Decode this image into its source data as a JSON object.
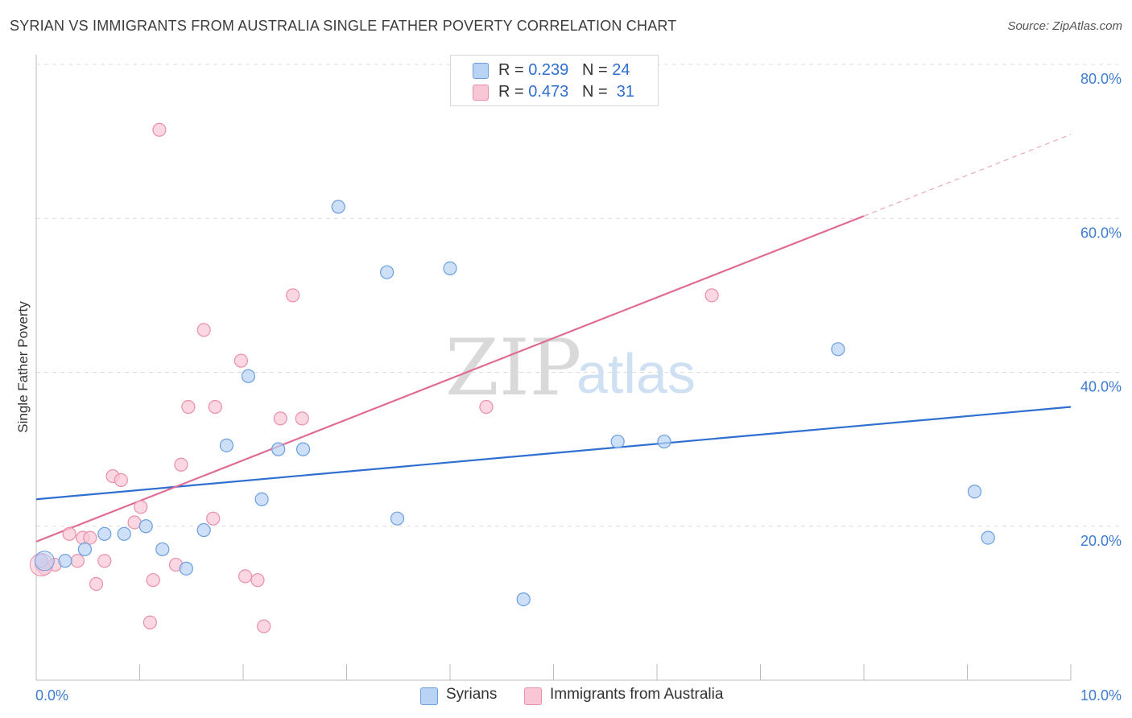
{
  "header": {
    "title": "SYRIAN VS IMMIGRANTS FROM AUSTRALIA SINGLE FATHER POVERTY CORRELATION CHART",
    "source": "Source: ZipAtlas.com"
  },
  "legend_top": {
    "rows": [
      {
        "r_label": "R =",
        "r_value": "0.239",
        "n_label": "N =",
        "n_value": "24"
      },
      {
        "r_label": "R =",
        "r_value": "0.473",
        "n_label": "N =",
        "n_value": "31"
      }
    ]
  },
  "watermark": {
    "part1": "ZIP",
    "part2": "atlas"
  },
  "colors": {
    "syrians_fill": "#b9d3f5",
    "syrians_stroke": "#6a9ee0",
    "syrians_line": "#2f6fd0",
    "australia_fill": "#f9c6d6",
    "australia_stroke": "#e98fab",
    "australia_line": "#e06c96",
    "tick_label": "#3d7bd1",
    "grid": "#dcdcdc"
  },
  "chart_data": {
    "type": "scatter",
    "title": "SYRIAN VS IMMIGRANTS FROM AUSTRALIA SINGLE FATHER POVERTY CORRELATION CHART",
    "xlabel": "",
    "ylabel": "Single Father Poverty",
    "xlim": [
      0,
      10
    ],
    "ylim": [
      0,
      80
    ],
    "x_tick_labels": [
      "0.0%",
      "10.0%"
    ],
    "y_tick_labels": [
      "20.0%",
      "40.0%",
      "60.0%",
      "80.0%"
    ],
    "y_ticks": [
      20,
      40,
      60,
      80
    ],
    "grid": true,
    "legend_position": "bottom",
    "series": [
      {
        "name": "Syrians",
        "R": 0.239,
        "N": 24,
        "points": [
          [
            0.05,
            15.5
          ],
          [
            0.28,
            15.5
          ],
          [
            0.47,
            17.0
          ],
          [
            0.66,
            19.0
          ],
          [
            0.85,
            19.0
          ],
          [
            1.06,
            20.0
          ],
          [
            1.22,
            17.0
          ],
          [
            1.45,
            14.5
          ],
          [
            1.62,
            19.5
          ],
          [
            1.84,
            30.5
          ],
          [
            2.05,
            39.5
          ],
          [
            2.18,
            23.5
          ],
          [
            2.34,
            30.0
          ],
          [
            2.58,
            30.0
          ],
          [
            2.92,
            61.5
          ],
          [
            3.39,
            53.0
          ],
          [
            3.49,
            21.0
          ],
          [
            4.0,
            53.5
          ],
          [
            4.71,
            10.5
          ],
          [
            5.62,
            31.0
          ],
          [
            6.07,
            31.0
          ],
          [
            7.75,
            43.0
          ],
          [
            9.07,
            24.5
          ],
          [
            9.2,
            18.5
          ]
        ],
        "trend": {
          "x": [
            0,
            10
          ],
          "y": [
            23.5,
            35.5
          ]
        }
      },
      {
        "name": "Immigrants from Australia",
        "R": 0.473,
        "N": 31,
        "points": [
          [
            0.05,
            15.0
          ],
          [
            0.18,
            15.0
          ],
          [
            0.32,
            19.0
          ],
          [
            0.4,
            15.5
          ],
          [
            0.45,
            18.5
          ],
          [
            0.52,
            18.5
          ],
          [
            0.58,
            12.5
          ],
          [
            0.66,
            15.5
          ],
          [
            0.74,
            26.5
          ],
          [
            0.82,
            26.0
          ],
          [
            0.95,
            20.5
          ],
          [
            1.01,
            22.5
          ],
          [
            1.1,
            7.5
          ],
          [
            1.13,
            13.0
          ],
          [
            1.19,
            71.5
          ],
          [
            1.35,
            15.0
          ],
          [
            1.4,
            28.0
          ],
          [
            1.47,
            35.5
          ],
          [
            1.62,
            45.5
          ],
          [
            1.71,
            21.0
          ],
          [
            1.73,
            35.5
          ],
          [
            2.02,
            13.5
          ],
          [
            1.98,
            41.5
          ],
          [
            2.14,
            13.0
          ],
          [
            2.2,
            7.0
          ],
          [
            2.36,
            34.0
          ],
          [
            2.48,
            50.0
          ],
          [
            2.57,
            34.0
          ],
          [
            4.35,
            35.5
          ],
          [
            6.53,
            50.0
          ],
          [
            0.08,
            14.5
          ]
        ],
        "trend": {
          "x": [
            0,
            8.0
          ],
          "y": [
            18.0,
            60.3
          ]
        },
        "trend_dashed": {
          "x": [
            8.0,
            10
          ],
          "y": [
            60.3,
            70.9
          ]
        }
      }
    ]
  }
}
